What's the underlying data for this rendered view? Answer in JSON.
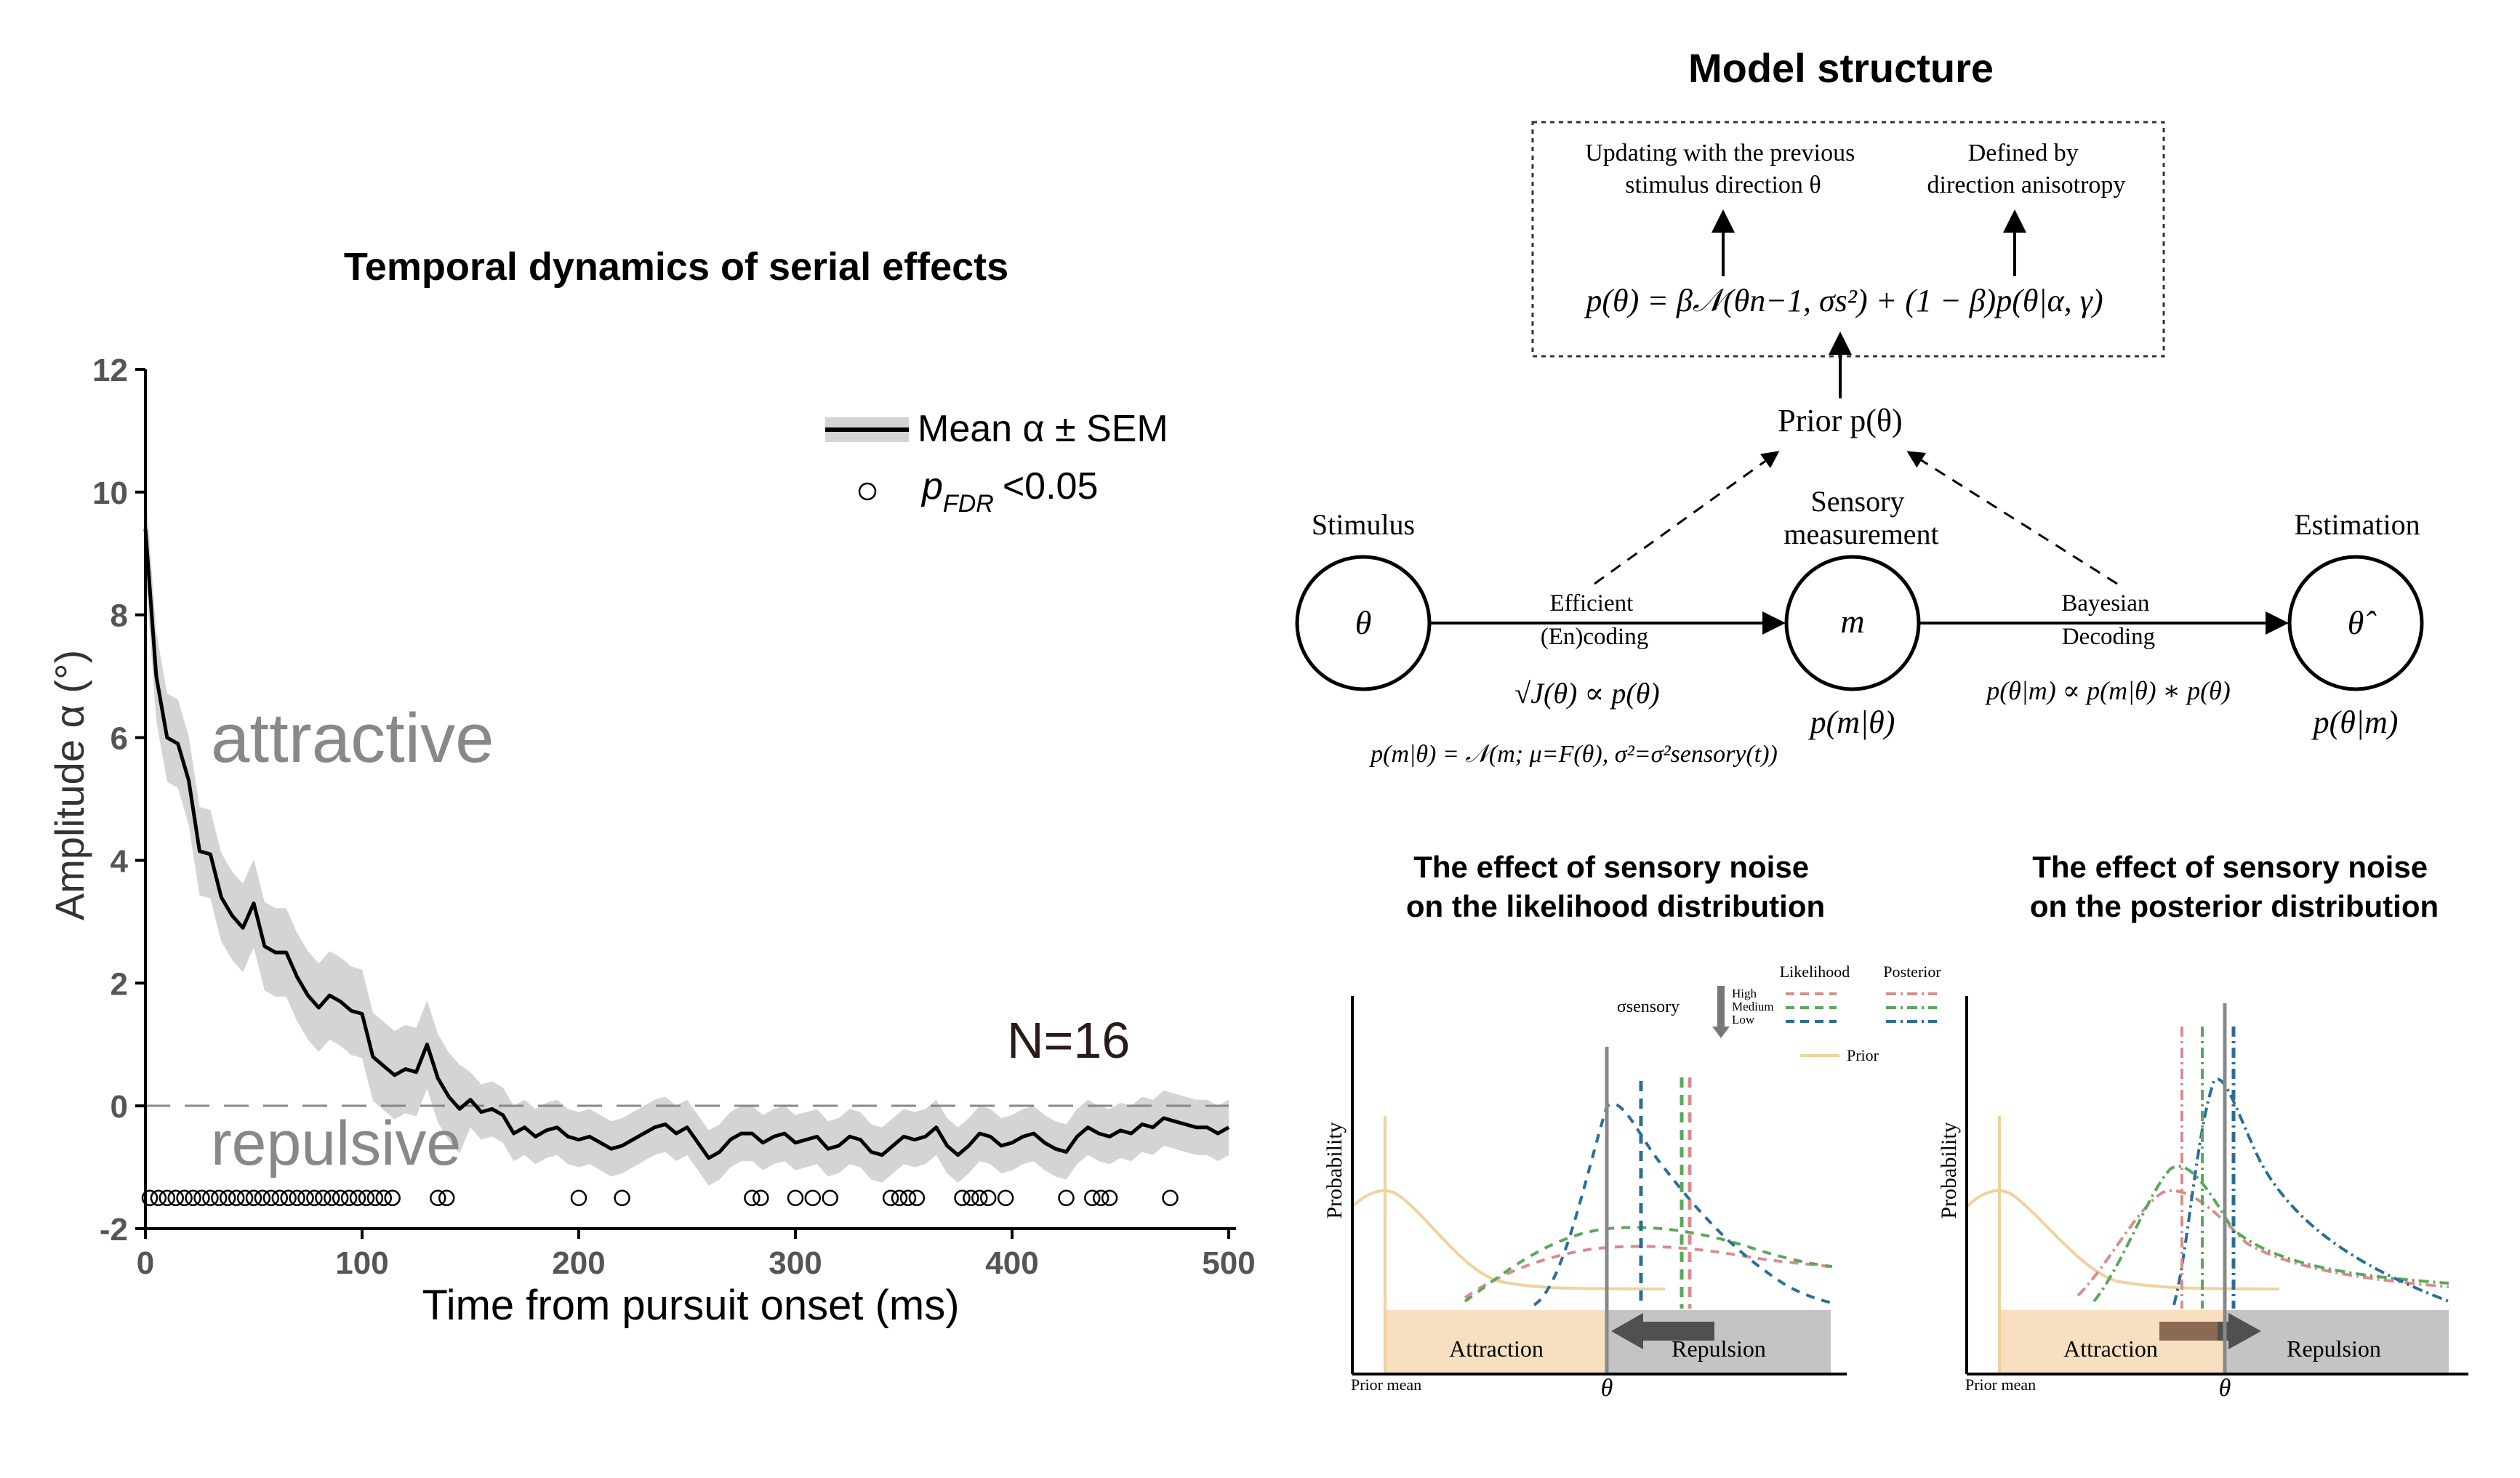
{
  "left_panel": {
    "title": "Temporal dynamics of serial effects",
    "chart_data": {
      "type": "line",
      "title": "Temporal dynamics of serial effects",
      "xlabel": "Time from pursuit onset (ms)",
      "ylabel": "Amplitude α (°)",
      "xlim": [
        0,
        500
      ],
      "ylim": [
        -2,
        12
      ],
      "xticks": [
        0,
        100,
        200,
        300,
        400,
        500
      ],
      "yticks": [
        -2,
        0,
        2,
        4,
        6,
        8,
        10,
        12
      ],
      "x": [
        0,
        5,
        10,
        15,
        20,
        25,
        30,
        35,
        40,
        45,
        50,
        55,
        60,
        65,
        70,
        75,
        80,
        85,
        90,
        95,
        100,
        105,
        110,
        115,
        120,
        125,
        130,
        135,
        140,
        145,
        150,
        155,
        160,
        165,
        170,
        175,
        180,
        185,
        190,
        195,
        200,
        205,
        210,
        215,
        220,
        225,
        230,
        235,
        240,
        245,
        250,
        255,
        260,
        265,
        270,
        275,
        280,
        285,
        290,
        295,
        300,
        305,
        310,
        315,
        320,
        325,
        330,
        335,
        340,
        345,
        350,
        355,
        360,
        365,
        370,
        375,
        380,
        385,
        390,
        395,
        400,
        405,
        410,
        415,
        420,
        425,
        430,
        435,
        440,
        445,
        450,
        455,
        460,
        465,
        470,
        475,
        480,
        485,
        490,
        495,
        500
      ],
      "series": [
        {
          "name": "Mean α ± SEM",
          "color": "#000000",
          "band_color": "#d4d4d4",
          "values": [
            9.4,
            7.0,
            6.0,
            5.9,
            5.3,
            4.15,
            4.1,
            3.4,
            3.1,
            2.9,
            3.3,
            2.6,
            2.5,
            2.5,
            2.1,
            1.8,
            1.6,
            1.8,
            1.7,
            1.55,
            1.5,
            0.8,
            0.65,
            0.5,
            0.6,
            0.55,
            1.0,
            0.45,
            0.15,
            -0.05,
            0.1,
            -0.1,
            -0.05,
            -0.15,
            -0.45,
            -0.35,
            -0.5,
            -0.4,
            -0.35,
            -0.5,
            -0.55,
            -0.5,
            -0.6,
            -0.7,
            -0.65,
            -0.55,
            -0.45,
            -0.35,
            -0.3,
            -0.45,
            -0.35,
            -0.6,
            -0.85,
            -0.75,
            -0.55,
            -0.45,
            -0.45,
            -0.6,
            -0.5,
            -0.45,
            -0.6,
            -0.55,
            -0.5,
            -0.7,
            -0.65,
            -0.5,
            -0.55,
            -0.75,
            -0.8,
            -0.65,
            -0.5,
            -0.55,
            -0.5,
            -0.35,
            -0.65,
            -0.8,
            -0.65,
            -0.45,
            -0.5,
            -0.65,
            -0.6,
            -0.5,
            -0.45,
            -0.6,
            -0.7,
            -0.75,
            -0.5,
            -0.35,
            -0.45,
            -0.5,
            -0.4,
            -0.45,
            -0.3,
            -0.35,
            -0.2,
            -0.25,
            -0.3,
            -0.35,
            -0.35,
            -0.45,
            -0.35
          ],
          "sem": 0.45
        }
      ],
      "significant_points": {
        "label": "p_FDR <0.05",
        "y": -1.5,
        "x": [
          2,
          6,
          10,
          14,
          18,
          22,
          26,
          30,
          34,
          38,
          42,
          46,
          50,
          54,
          58,
          62,
          66,
          70,
          74,
          78,
          82,
          86,
          90,
          94,
          98,
          102,
          106,
          110,
          114,
          135,
          139,
          200,
          220,
          280,
          284,
          300,
          308,
          316,
          344,
          348,
          352,
          356,
          377,
          381,
          385,
          389,
          397,
          425,
          437,
          441,
          445,
          473
        ]
      },
      "zero_line": 0,
      "annotations": [
        "attractive",
        "repulsive",
        "N=16"
      ],
      "legend": {
        "placement": "top-right",
        "entries": [
          "Mean α ± SEM",
          "p_FDR <0.05"
        ]
      },
      "grid": false
    },
    "legend_mean": "Mean α ± SEM",
    "legend_p": "p",
    "legend_p_sub": "FDR",
    "legend_p_thresh": "<0.05",
    "label_attractive": "attractive",
    "label_repulsive": "repulsive",
    "n_label": "N=16",
    "xlabel": "Time from pursuit onset (ms)",
    "ylabel": "Amplitude α (°)",
    "xtick_labels": [
      "0",
      "100",
      "200",
      "300",
      "400",
      "500"
    ],
    "ytick_labels": [
      "-2",
      "0",
      "2",
      "4",
      "6",
      "8",
      "10",
      "12"
    ]
  },
  "model": {
    "title": "Model structure",
    "box_note_left": [
      "Updating with the previous",
      "stimulus direction θ"
    ],
    "box_note_right": [
      "Defined by",
      "direction anisotropy"
    ],
    "prior_formula": "p(θ) = β𝒩(θn−1, σs²) + (1 − β)p(θ|α, γ)",
    "prior_label": "Prior p(θ)",
    "stimulus_label": "Stimulus",
    "sensory_label": [
      "Sensory",
      "measurement"
    ],
    "estimation_label": "Estimation",
    "node_theta": "θ",
    "node_m": "m",
    "node_theta_hat": "θ̂",
    "encoding_label": [
      "Efficient",
      "(En)coding"
    ],
    "decoding_label": [
      "Bayesian",
      "Decoding"
    ],
    "efficient_formula": "√J(θ) ∝ p(θ)",
    "likelihood_formula": "p(m|θ) = 𝒩(m; μ=F(θ), σ²=σ²sensory(t))",
    "posterior_formula": "p(θ|m) ∝ p(m|θ) ∗ p(θ)",
    "node_m_below": "p(m|θ)",
    "node_est_below": "p(θ|m)"
  },
  "likelihood_panel": {
    "title": [
      "The effect of sensory noise",
      "on the likelihood distribution"
    ],
    "ylabel": "Probability",
    "legend_likelihood": "Likelihood",
    "legend_posterior": "Posterior",
    "sigma_label": "σsensory",
    "levels": [
      "High",
      "Medium",
      "Low"
    ],
    "prior_legend": "Prior",
    "attraction": "Attraction",
    "repulsion": "Repulsion",
    "prior_mean": "Prior mean",
    "theta": "θ",
    "colors": {
      "high": "#d98c8c",
      "medium": "#5aa85a",
      "low": "#2a6e96",
      "prior": "#f0d29c",
      "attraction_band": "#f8dfbf",
      "repulsion_band": "#c4c4c4"
    }
  },
  "posterior_panel": {
    "title": [
      "The effect of sensory noise",
      "on the posterior distribution"
    ],
    "ylabel": "Probability",
    "attraction": "Attraction",
    "repulsion": "Repulsion",
    "prior_mean": "Prior mean",
    "theta": "θ"
  }
}
